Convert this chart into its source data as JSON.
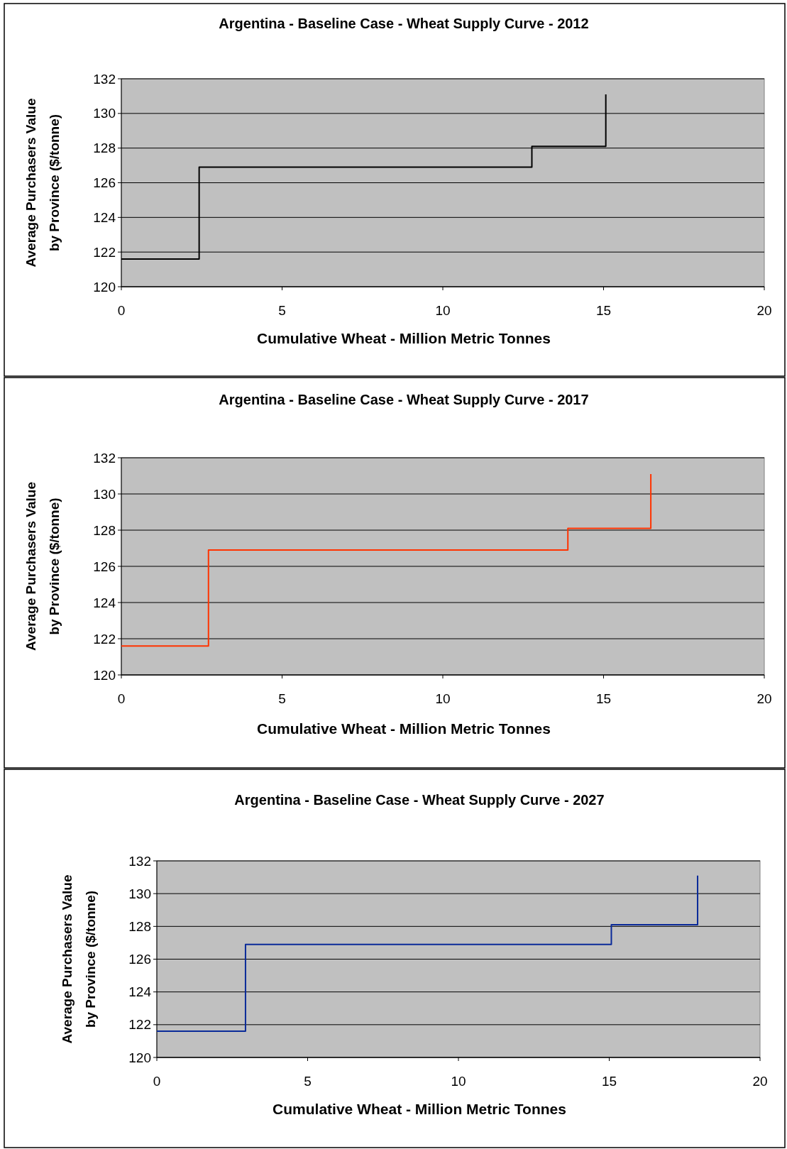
{
  "chart_data": [
    {
      "type": "step",
      "title": "Argentina - Baseline Case - Wheat Supply Curve - 2012",
      "xlabel": "Cumulative Wheat - Million Metric Tonnes",
      "ylabel": "Average Purchasers Value\nby Province ($/tonne)",
      "xlim": [
        0,
        20
      ],
      "xticks": [
        0,
        5,
        10,
        15,
        20
      ],
      "ylim": [
        120,
        132
      ],
      "yticks": [
        120,
        122,
        124,
        126,
        128,
        130,
        132
      ],
      "grid": "y",
      "series": [
        {
          "color": "#000000",
          "x": [
            0,
            2.42,
            12.77,
            15.07
          ],
          "values": [
            121.6,
            126.9,
            128.1,
            131.1
          ]
        }
      ]
    },
    {
      "type": "step",
      "title": "Argentina - Baseline Case - Wheat Supply Curve - 2017",
      "xlabel": "Cumulative Wheat - Million Metric Tonnes",
      "ylabel": "Average Purchasers Value\nby Province ($/tonne)",
      "xlim": [
        0,
        20
      ],
      "xticks": [
        0,
        5,
        10,
        15,
        20
      ],
      "ylim": [
        120,
        132
      ],
      "yticks": [
        120,
        122,
        124,
        126,
        128,
        130,
        132
      ],
      "grid": "y",
      "series": [
        {
          "color": "#ff3300",
          "x": [
            0,
            2.71,
            13.89,
            16.47
          ],
          "values": [
            121.6,
            126.9,
            128.1,
            131.1
          ]
        }
      ]
    },
    {
      "type": "step",
      "title": "Argentina - Baseline Case - Wheat Supply Curve - 2027",
      "xlabel": "Cumulative Wheat - Million Metric Tonnes",
      "ylabel": "Average Purchasers Value\nby Province ($/tonne)",
      "xlim": [
        0,
        20
      ],
      "xticks": [
        0,
        5,
        10,
        15,
        20
      ],
      "ylim": [
        120,
        132
      ],
      "yticks": [
        120,
        122,
        124,
        126,
        128,
        130,
        132
      ],
      "grid": "y",
      "series": [
        {
          "color": "#0a2a99",
          "x": [
            0,
            2.94,
            15.07,
            17.93
          ],
          "values": [
            121.6,
            126.9,
            128.1,
            131.1
          ]
        }
      ]
    }
  ]
}
